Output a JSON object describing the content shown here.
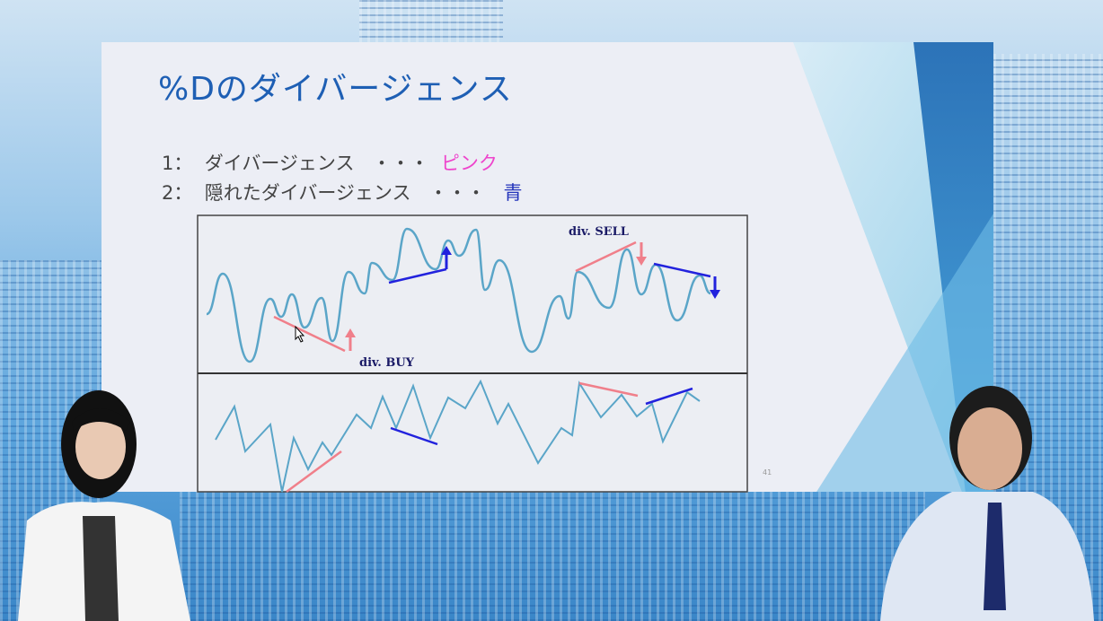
{
  "slide": {
    "title": "%Dのダイバージェンス",
    "items": [
      {
        "number": "1：",
        "label": "ダイバージェンス",
        "dots": "・・・",
        "color_word": "ピンク",
        "color": "#ee44cc"
      },
      {
        "number": "2：",
        "label": "隠れたダイバージェンス",
        "dots": "・・・",
        "color_word": "青",
        "color": "#2233bb"
      }
    ],
    "diagram": {
      "sell_label": "div. SELL",
      "buy_label": "div. BUY",
      "line_color": "#5aa5c8",
      "regular_divergence_color": "#f07f8a",
      "hidden_divergence_color": "#2222dd"
    },
    "page_number": "41"
  }
}
